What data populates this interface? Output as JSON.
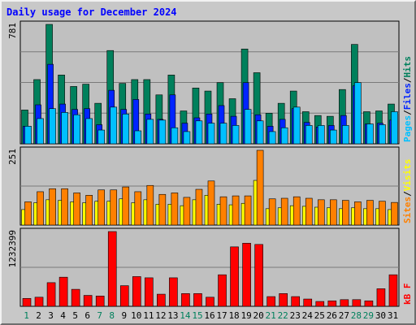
{
  "chart_data": {
    "type": "bar",
    "title": "Daily usage for December 2024",
    "categories": [
      "1",
      "2",
      "3",
      "4",
      "5",
      "6",
      "7",
      "8",
      "9",
      "10",
      "11",
      "12",
      "13",
      "14",
      "15",
      "16",
      "17",
      "18",
      "19",
      "20",
      "21",
      "22",
      "23",
      "24",
      "25",
      "26",
      "27",
      "28",
      "29",
      "30",
      "31"
    ],
    "weekend_days": [
      "1",
      "7",
      "8",
      "14",
      "15",
      "21",
      "22",
      "28",
      "29"
    ],
    "colors": {
      "title": "#0000ff",
      "hits": "#00805c",
      "files": "#0024ff",
      "pages": "#00c0ff",
      "visits": "#ffff00",
      "sites": "#ff8000",
      "kbytes": "#ff0000",
      "weekday_label": "#000000",
      "weekend_label": "#00805c"
    },
    "panels": [
      {
        "name": "hits-files-pages",
        "ymax_label": "781",
        "ylim": [
          0,
          781
        ],
        "legend": [
          "Pages",
          "Files",
          "Hits"
        ],
        "series": [
          {
            "name": "Hits",
            "values": [
              221,
              420,
              781,
              450,
              375,
              390,
              265,
              610,
              395,
              420,
              420,
              320,
              450,
              215,
              365,
              345,
              400,
              295,
              620,
              465,
              200,
              265,
              345,
              210,
              185,
              180,
              355,
              650,
              210,
              215,
              260
            ]
          },
          {
            "name": "Files",
            "values": [
              115,
              255,
              520,
              260,
              225,
              230,
              125,
              350,
              225,
              290,
              195,
              160,
              320,
              135,
              170,
              195,
              250,
              180,
              400,
              190,
              115,
              160,
              230,
              140,
              110,
              120,
              185,
              380,
              130,
              135,
              155
            ]
          },
          {
            "name": "Pages",
            "values": [
              115,
              165,
              230,
              205,
              190,
              165,
              90,
              240,
              195,
              85,
              160,
              155,
              105,
              80,
              150,
              135,
              135,
              120,
              225,
              150,
              80,
              105,
              240,
              120,
              120,
              90,
              120,
              400,
              130,
              125,
              210
            ]
          }
        ]
      },
      {
        "name": "visits-sites",
        "ymax_label": "251",
        "ylim": [
          0,
          251
        ],
        "legend": [
          "Sites",
          "Visits"
        ],
        "series": [
          {
            "name": "Sites",
            "values": [
              78,
              112,
              122,
              122,
              108,
              100,
              118,
              118,
              128,
              112,
              133,
              103,
              108,
              93,
              120,
              148,
              95,
              98,
              98,
              251,
              88,
              90,
              95,
              90,
              85,
              85,
              83,
              78,
              83,
              80,
              76
            ]
          },
          {
            "name": "Visits",
            "values": [
              52,
              75,
              85,
              83,
              78,
              75,
              80,
              80,
              88,
              75,
              85,
              70,
              70,
              65,
              85,
              100,
              70,
              68,
              73,
              150,
              55,
              58,
              65,
              63,
              60,
              58,
              55,
              58,
              55,
              55,
              52
            ]
          }
        ]
      },
      {
        "name": "kbytes",
        "ymax_label": "1232399",
        "ylim": [
          0,
          1232399
        ],
        "legend": [
          "kB F"
        ],
        "series": [
          {
            "name": "kB F",
            "values": [
              130000,
              150000,
              390000,
              480000,
              280000,
              180000,
              170000,
              1232399,
              340000,
              490000,
              470000,
              200000,
              470000,
              210000,
              210000,
              150000,
              520000,
              980000,
              1040000,
              1020000,
              160000,
              210000,
              160000,
              120000,
              80000,
              90000,
              110000,
              110000,
              90000,
              290000,
              520000
            ]
          }
        ]
      }
    ]
  }
}
